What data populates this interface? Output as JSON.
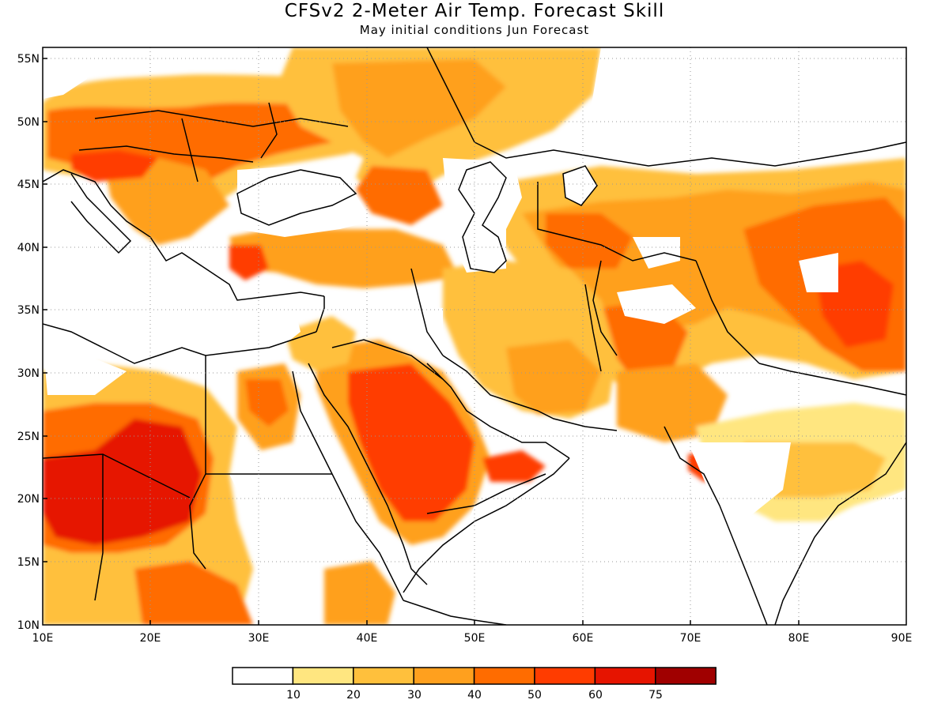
{
  "title": "CFSv2 2-Meter Air Temp. Forecast Skill",
  "subtitle": "May initial conditions  Jun Forecast",
  "map": {
    "lon_range": [
      10,
      90
    ],
    "lat_range": [
      10,
      56
    ],
    "lat_ticks": [
      "55N",
      "50N",
      "45N",
      "40N",
      "35N",
      "30N",
      "25N",
      "20N",
      "15N",
      "10N"
    ],
    "lon_ticks": [
      "10E",
      "20E",
      "30E",
      "40E",
      "50E",
      "60E",
      "70E",
      "80E",
      "90E"
    ],
    "grid": "dotted"
  },
  "colorbar": {
    "labels": [
      "10",
      "20",
      "30",
      "40",
      "50",
      "60",
      "75"
    ],
    "colors": [
      "#ffffff",
      "#ffe680",
      "#ffc03c",
      "#ffa01e",
      "#ff6c00",
      "#ff3c00",
      "#e61400",
      "#a00000"
    ]
  },
  "colors": {
    "c10": "#ffe680",
    "c20": "#ffc03c",
    "c30": "#ffa01e",
    "c40": "#ff6c00",
    "c50": "#ff3c00",
    "c60": "#e61400",
    "c75": "#a00000"
  }
}
